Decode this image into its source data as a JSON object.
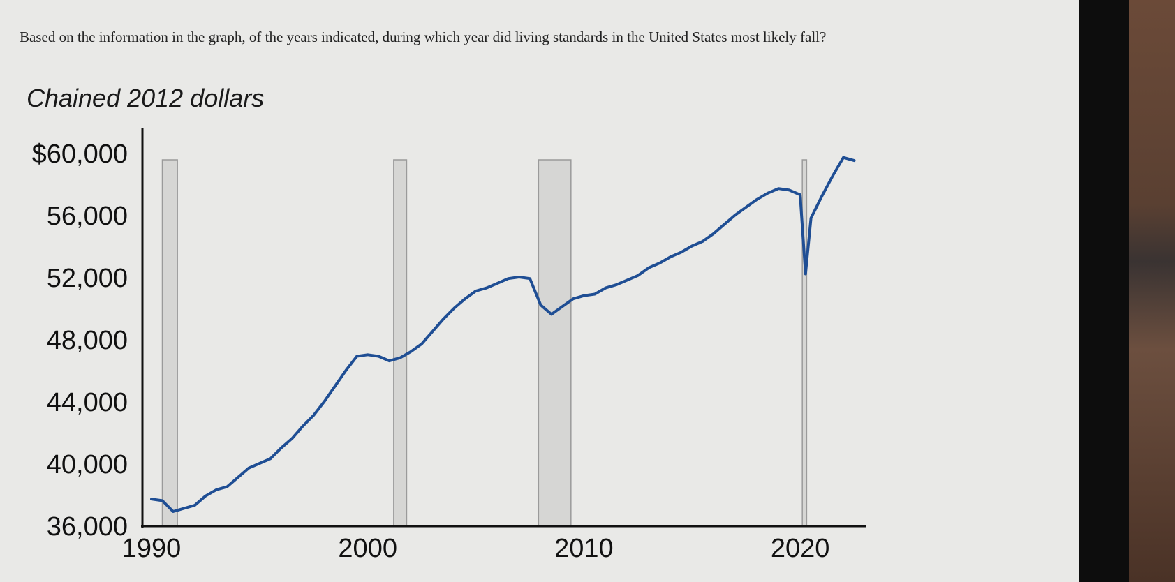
{
  "question": "Based on the information in the graph, of the years indicated, during which year did living standards in the United States most likely fall?",
  "chart_data": {
    "type": "line",
    "title": "Chained 2012 dollars",
    "xlabel": "",
    "ylabel": "",
    "x_ticks": [
      1990,
      2000,
      2010,
      2020
    ],
    "y_ticks": [
      36000,
      40000,
      44000,
      48000,
      52000,
      56000,
      60000
    ],
    "y_tick_labels": [
      "36,000",
      "40,000",
      "44,000",
      "48,000",
      "52,000",
      "56,000",
      "$60,000"
    ],
    "xlim": [
      1990,
      2023
    ],
    "ylim": [
      36000,
      61000
    ],
    "recession_bands": [
      [
        1990.5,
        1991.2
      ],
      [
        2001.2,
        2001.8
      ],
      [
        2007.9,
        2009.4
      ],
      [
        2020.1,
        2020.3
      ]
    ],
    "series": [
      {
        "color": "#1f4e94",
        "x": [
          1990.0,
          1990.5,
          1991.0,
          1991.5,
          1992.0,
          1992.5,
          1993.0,
          1993.5,
          1994.0,
          1994.5,
          1995.0,
          1995.5,
          1996.0,
          1996.5,
          1997.0,
          1997.5,
          1998.0,
          1998.5,
          1999.0,
          1999.5,
          2000.0,
          2000.5,
          2001.0,
          2001.5,
          2002.0,
          2002.5,
          2003.0,
          2003.5,
          2004.0,
          2004.5,
          2005.0,
          2005.5,
          2006.0,
          2006.5,
          2007.0,
          2007.5,
          2008.0,
          2008.5,
          2009.0,
          2009.5,
          2010.0,
          2010.5,
          2011.0,
          2011.5,
          2012.0,
          2012.5,
          2013.0,
          2013.5,
          2014.0,
          2014.5,
          2015.0,
          2015.5,
          2016.0,
          2016.5,
          2017.0,
          2017.5,
          2018.0,
          2018.5,
          2019.0,
          2019.5,
          2020.0,
          2020.25,
          2020.5,
          2021.0,
          2021.5,
          2022.0,
          2022.5
        ],
        "values": [
          37700,
          37600,
          36900,
          37100,
          37300,
          37900,
          38300,
          38500,
          39100,
          39700,
          40000,
          40300,
          41000,
          41600,
          42400,
          43100,
          44000,
          45000,
          46000,
          46900,
          47000,
          46900,
          46600,
          46800,
          47200,
          47700,
          48500,
          49300,
          50000,
          50600,
          51100,
          51300,
          51600,
          51900,
          52000,
          51900,
          50200,
          49600,
          50100,
          50600,
          50800,
          50900,
          51300,
          51500,
          51800,
          52100,
          52600,
          52900,
          53300,
          53600,
          54000,
          54300,
          54800,
          55400,
          56000,
          56500,
          57000,
          57400,
          57700,
          57600,
          57300,
          52200,
          55800,
          57200,
          58500,
          59700,
          59500
        ]
      }
    ]
  },
  "colors": {
    "line": "#1f4e94",
    "recession_fill": "#d6d6d4",
    "recession_stroke": "#9a9a9a",
    "axis": "#111111",
    "background": "#e9e9e7"
  }
}
